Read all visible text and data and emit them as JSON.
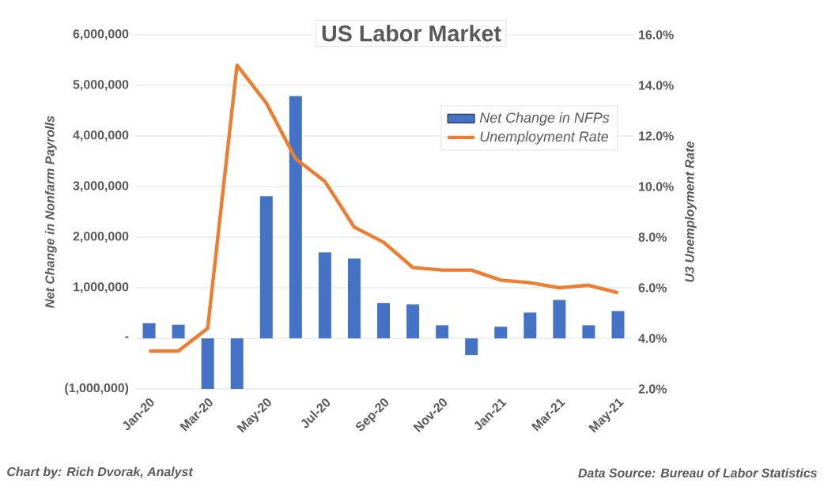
{
  "chart_data": {
    "type": "bar",
    "title": "US Labor Market",
    "categories": [
      "Jan-20",
      null,
      "Mar-20",
      null,
      "May-20",
      null,
      "Jul-20",
      null,
      "Sep-20",
      null,
      "Nov-20",
      null,
      "Jan-21",
      null,
      "Mar-21",
      null,
      "May-21"
    ],
    "series": [
      {
        "name": "Net Change in NFPs",
        "color": "#4472c4",
        "values": [
          300000,
          270000,
          -1000000,
          -1000000,
          2810000,
          4790000,
          1700000,
          1580000,
          700000,
          670000,
          260000,
          -330000,
          230000,
          510000,
          760000,
          260000,
          540000
        ]
      },
      {
        "name": "Unemployment Rate",
        "type": "line",
        "axis": "y2",
        "color": "#ed7d31",
        "values": [
          3.5,
          3.5,
          4.4,
          14.8,
          13.3,
          11.1,
          10.2,
          8.4,
          7.8,
          6.8,
          6.7,
          6.7,
          6.3,
          6.2,
          6.0,
          6.1,
          5.8
        ]
      }
    ],
    "ylabel": "Net Change in Nonfarm Payrolls",
    "y2label": "U3 Unemployment Rate",
    "ylim": [
      -1000000,
      6000000
    ],
    "yticks": [
      {
        "value": -1000000,
        "label": "(1,000,000)"
      },
      {
        "value": 0,
        "label": "-"
      },
      {
        "value": 1000000,
        "label": "1,000,000"
      },
      {
        "value": 2000000,
        "label": "2,000,000"
      },
      {
        "value": 3000000,
        "label": "3,000,000"
      },
      {
        "value": 4000000,
        "label": "4,000,000"
      },
      {
        "value": 5000000,
        "label": "5,000,000"
      },
      {
        "value": 6000000,
        "label": "6,000,000"
      }
    ],
    "y2lim": [
      2,
      16
    ],
    "y2ticks": [
      {
        "value": 2,
        "label": "2.0%"
      },
      {
        "value": 4,
        "label": "4.0%"
      },
      {
        "value": 6,
        "label": "6.0%"
      },
      {
        "value": 8,
        "label": "8.0%"
      },
      {
        "value": 10,
        "label": "10.0%"
      },
      {
        "value": 12,
        "label": "12.0%"
      },
      {
        "value": 14,
        "label": "14.0%"
      },
      {
        "value": 16,
        "label": "16.0%"
      }
    ],
    "grid": "y",
    "legend": "top right",
    "annotations": [
      "Chart by: Rich Dvorak, Analyst",
      "Data Source: Bureau of Labor Statistics"
    ]
  }
}
